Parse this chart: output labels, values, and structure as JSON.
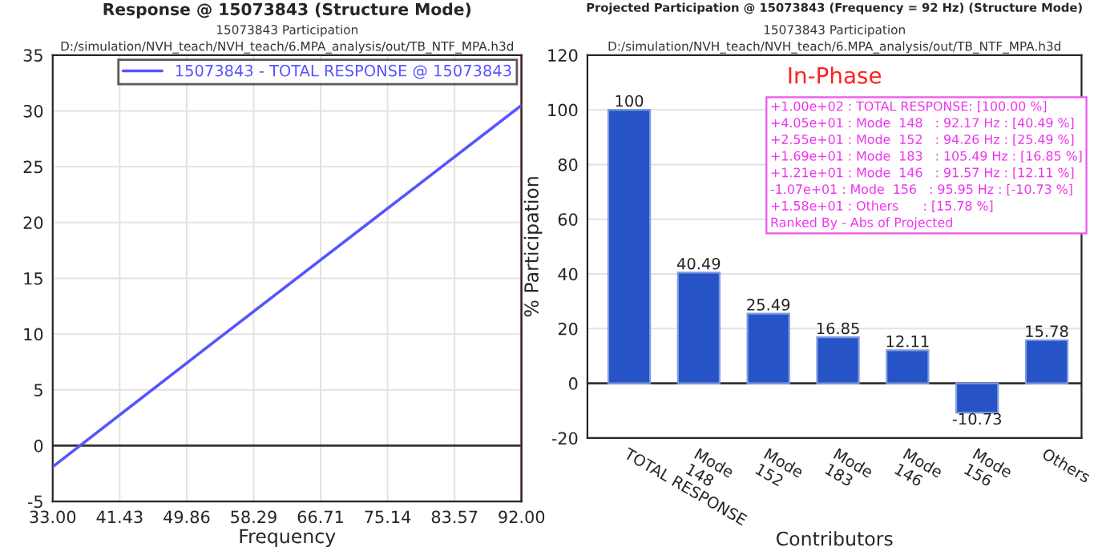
{
  "chart_data": [
    {
      "type": "line",
      "title": "Response @ 15073843 (Structure Mode)",
      "subtitle": "15073843 Participation\nD:/simulation/NVH_teach/NVH_teach/6.MPA_analysis/out/TB_NTF_MPA.h3d",
      "xlabel": "Frequency",
      "series": [
        {
          "name": "15073843 - TOTAL RESPONSE @ 15073843",
          "color": "#5555ff",
          "x": [
            33.0,
            49.86,
            92.0
          ],
          "values": [
            -1.9,
            7.4,
            30.5
          ]
        }
      ],
      "xlim": [
        33.0,
        92.0
      ],
      "xticks": [
        {
          "value": 33.0,
          "label": "33.00"
        },
        {
          "value": 41.43,
          "label": "41.43"
        },
        {
          "value": 49.86,
          "label": "49.86"
        },
        {
          "value": 58.29,
          "label": "58.29"
        },
        {
          "value": 66.71,
          "label": "66.71"
        },
        {
          "value": 75.14,
          "label": "75.14"
        },
        {
          "value": 83.57,
          "label": "83.57"
        },
        {
          "value": 92.0,
          "label": "92.00"
        }
      ],
      "ylim": [
        -5,
        35
      ],
      "yticks": [
        -5,
        0,
        5,
        10,
        15,
        20,
        25,
        30,
        35
      ],
      "ref_lines": [
        {
          "axis": "y",
          "value": 0,
          "color": "#333333"
        },
        {
          "axis": "x",
          "value": 92.0,
          "color": "#ff2020"
        }
      ],
      "grid": true,
      "legend": "top right",
      "line_style": "solid",
      "marker": "none"
    },
    {
      "type": "bar",
      "title": "Projected Participation @ 15073843 (Frequency = 92 Hz) (Structure Mode)",
      "subtitle": "15073843 Participation\nD:/simulation/NVH_teach/NVH_teach/6.MPA_analysis/out/TB_NTF_MPA.h3d",
      "xlabel": "Contributors",
      "ylabel": "% Participation",
      "categories": [
        "TOTAL RESPONSE",
        "Mode\n148",
        "Mode\n152",
        "Mode\n183",
        "Mode\n146",
        "Mode\n156",
        "Others"
      ],
      "values": [
        100,
        40.49,
        25.49,
        16.85,
        12.11,
        -10.73,
        15.78
      ],
      "color": "#2653c6",
      "ylim": [
        -20,
        120
      ],
      "yticks": [
        -20,
        0,
        20,
        40,
        60,
        80,
        100,
        120
      ],
      "ref_lines": [
        {
          "axis": "y",
          "value": 0,
          "color": "#333333"
        }
      ],
      "annotations": [
        "In-Phase",
        "+1.00e+02 : TOTAL RESPONSE: [100.00 %]\n+4.05e+01 : Mode  148   : 92.17 Hz : [40.49 %]\n+2.55e+01 : Mode  152   : 94.26 Hz : [25.49 %]\n+1.69e+01 : Mode  183   : 105.49 Hz : [16.85 %]\n+1.21e+01 : Mode  146   : 91.57 Hz : [12.11 %]\n-1.07e+01 : Mode  156   : 95.95 Hz : [-10.73 %]\n+1.58e+01 : Others      : [15.78 %]\nRanked By - Abs of Projected"
      ],
      "data_labels": true,
      "grid": "y"
    }
  ]
}
